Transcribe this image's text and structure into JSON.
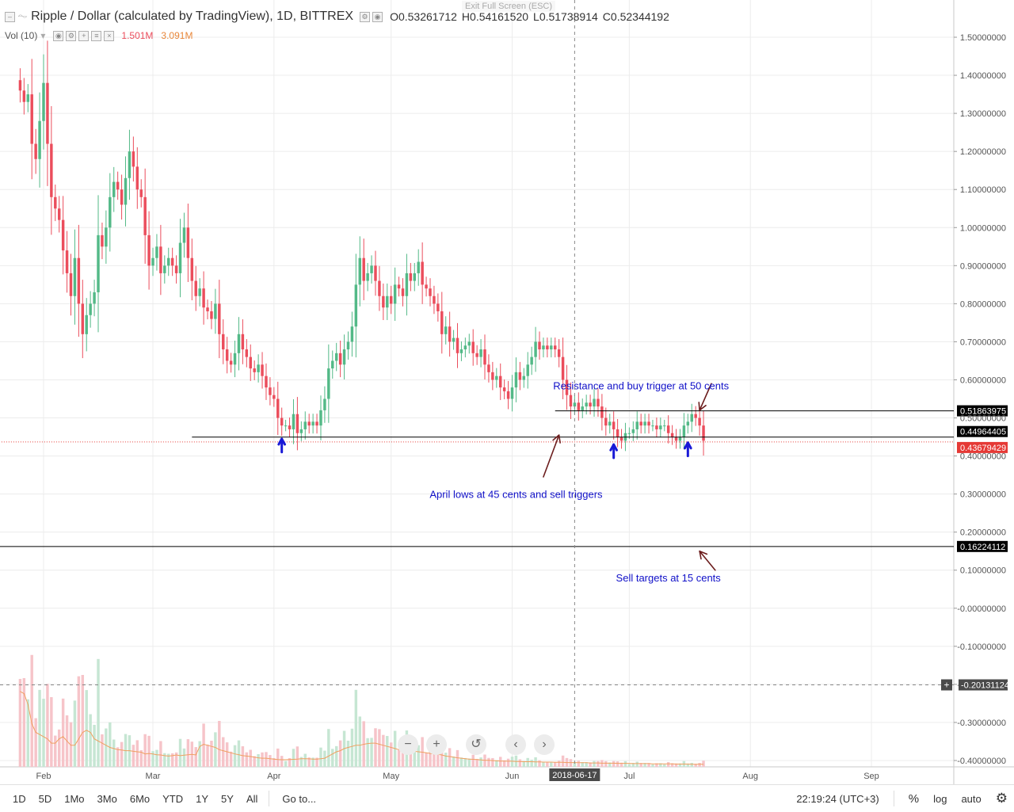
{
  "header": {
    "symbol_title": "Ripple / Dollar (calculated by TradingView), 1D, BITTREX",
    "ohlc": [
      {
        "k": "O",
        "v": "0.53261712"
      },
      {
        "k": "H",
        "v": "0.54161520"
      },
      {
        "k": "L",
        "v": "0.51738914"
      },
      {
        "k": "C",
        "v": "0.52344192"
      }
    ],
    "volume_label": "Vol (10)",
    "volume_value": "1.501M",
    "volume_ma": "3.091M",
    "exit_hint": "Exit Full Screen (ESC)"
  },
  "chart_data": {
    "type": "candlestick",
    "price_axis": {
      "ticks": [
        "1.50000000",
        "1.40000000",
        "1.30000000",
        "1.20000000",
        "1.10000000",
        "1.00000000",
        "0.90000000",
        "0.80000000",
        "0.70000000",
        "0.60000000",
        "0.50000000",
        "0.40000000",
        "0.30000000",
        "0.20000000",
        "0.10000000",
        "-0.00000000",
        "-0.10000000",
        "-0.20000000",
        "-0.30000000",
        "-0.40000000"
      ],
      "range": [
        -0.42,
        1.58
      ]
    },
    "time_axis": {
      "ticks": [
        {
          "label": "Feb",
          "date": "2018-02-01"
        },
        {
          "label": "Mar",
          "date": "2018-03-01"
        },
        {
          "label": "Apr",
          "date": "2018-04-01"
        },
        {
          "label": "May",
          "date": "2018-05-01"
        },
        {
          "label": "Jun",
          "date": "2018-06-01"
        },
        {
          "label": "Jul",
          "date": "2018-07-01"
        },
        {
          "label": "Aug",
          "date": "2018-08-01"
        },
        {
          "label": "Sep",
          "date": "2018-09-01"
        }
      ],
      "range": [
        "2018-01-20",
        "2018-09-25"
      ],
      "crosshair_date": "2018-06-17"
    },
    "last_date": "2018-07-20",
    "closes": [
      1.36,
      1.33,
      1.35,
      1.22,
      1.18,
      1.28,
      1.38,
      1.22,
      1.08,
      1.05,
      1.02,
      0.94,
      0.88,
      0.82,
      0.92,
      0.8,
      0.72,
      0.77,
      0.8,
      0.83,
      0.98,
      0.95,
      1.0,
      1.08,
      1.12,
      1.1,
      1.06,
      1.13,
      1.2,
      1.16,
      1.1,
      1.08,
      0.98,
      0.9,
      0.92,
      0.95,
      0.88,
      0.9,
      0.92,
      0.9,
      0.88,
      0.96,
      1.0,
      0.92,
      0.86,
      0.82,
      0.84,
      0.79,
      0.78,
      0.76,
      0.8,
      0.72,
      0.68,
      0.65,
      0.64,
      0.67,
      0.72,
      0.68,
      0.66,
      0.63,
      0.62,
      0.64,
      0.61,
      0.58,
      0.56,
      0.55,
      0.5,
      0.48,
      0.48,
      0.47,
      0.51,
      0.46,
      0.47,
      0.49,
      0.48,
      0.49,
      0.48,
      0.52,
      0.55,
      0.63,
      0.65,
      0.67,
      0.64,
      0.68,
      0.7,
      0.74,
      0.85,
      0.92,
      0.86,
      0.88,
      0.9,
      0.86,
      0.82,
      0.79,
      0.82,
      0.8,
      0.85,
      0.84,
      0.82,
      0.88,
      0.86,
      0.88,
      0.91,
      0.85,
      0.84,
      0.82,
      0.8,
      0.78,
      0.72,
      0.74,
      0.7,
      0.71,
      0.67,
      0.68,
      0.69,
      0.7,
      0.67,
      0.66,
      0.68,
      0.64,
      0.62,
      0.6,
      0.61,
      0.58,
      0.57,
      0.55,
      0.58,
      0.62,
      0.6,
      0.61,
      0.64,
      0.66,
      0.7,
      0.68,
      0.69,
      0.68,
      0.69,
      0.68,
      0.66,
      0.6,
      0.56,
      0.53,
      0.54,
      0.52,
      0.53,
      0.54,
      0.53,
      0.55,
      0.53,
      0.5,
      0.48,
      0.49,
      0.47,
      0.45,
      0.44,
      0.46,
      0.46,
      0.47,
      0.49,
      0.48,
      0.49,
      0.48,
      0.48,
      0.47,
      0.48,
      0.48,
      0.46,
      0.45,
      0.44,
      0.45,
      0.48,
      0.49,
      0.51,
      0.5,
      0.48,
      0.44
    ],
    "volume_ma": [
      3.5,
      3.4,
      2.9,
      2.0,
      1.6,
      1.5,
      1.4,
      1.3,
      1.1,
      1.1,
      1.3,
      1.4,
      1.2,
      1.0,
      1.0,
      1.3,
      1.6,
      1.7,
      1.6,
      1.3,
      1.2,
      1.1,
      1.0,
      0.9,
      0.85,
      0.8,
      0.78,
      0.75,
      0.75,
      0.72,
      0.7,
      0.68,
      0.6,
      0.62,
      0.6,
      0.56,
      0.55,
      0.52,
      0.5,
      0.52,
      0.55,
      0.52,
      0.54,
      0.56,
      0.58,
      0.55,
      0.95,
      1.05,
      1.0,
      0.95,
      0.9,
      0.8,
      0.75,
      0.7,
      0.65,
      0.6,
      0.56,
      0.52,
      0.5,
      0.48,
      0.45,
      0.42,
      0.4,
      0.4,
      0.38,
      0.36,
      0.34,
      0.33,
      0.33,
      0.34,
      0.35,
      0.36,
      0.38,
      0.38,
      0.37,
      0.36,
      0.36,
      0.38,
      0.4,
      0.5,
      0.6,
      0.7,
      0.75,
      0.85,
      0.9,
      0.95,
      1.0,
      1.0,
      1.05,
      1.08,
      1.1,
      1.1,
      1.05,
      1.0,
      0.95,
      0.9,
      0.85,
      0.8,
      0.8,
      0.78,
      0.75,
      0.72,
      0.7,
      0.68,
      0.65,
      0.62,
      0.6,
      0.58,
      0.55,
      0.5,
      0.48,
      0.45,
      0.42,
      0.4,
      0.38,
      0.36,
      0.35,
      0.34,
      0.32,
      0.3,
      0.3,
      0.29,
      0.28,
      0.27,
      0.27,
      0.26,
      0.26,
      0.25,
      0.25,
      0.24,
      0.24,
      0.24,
      0.23,
      0.23,
      0.22,
      0.22,
      0.22,
      0.21,
      0.21,
      0.21,
      0.2,
      0.2,
      0.2,
      0.19,
      0.19,
      0.19,
      0.18,
      0.18,
      0.18,
      0.17,
      0.17,
      0.17,
      0.17,
      0.16,
      0.16,
      0.16,
      0.16,
      0.15,
      0.15,
      0.15,
      0.15,
      0.15,
      0.14,
      0.14,
      0.14,
      0.14,
      0.14,
      0.14,
      0.13,
      0.13,
      0.13,
      0.13,
      0.12,
      0.12,
      0.12,
      0.12,
      0.12,
      0.11,
      0.11
    ],
    "volume_scale_max": 8.0,
    "hlines": [
      {
        "value": 0.51863975,
        "label": "0.51863975",
        "from_date": "2018-06-12",
        "color": "#000000"
      },
      {
        "value": 0.44964405,
        "label": "0.44964405",
        "from_date": "2018-03-11",
        "color": "#000000"
      },
      {
        "value": 0.43679429,
        "label": "0.43679429",
        "from_date": "2018-01-20",
        "color": "#e53935",
        "dotted": true
      },
      {
        "value": 0.16224112,
        "label": "0.16224112",
        "from_date": "2018-01-20",
        "color": "#000000"
      }
    ],
    "crosshair": {
      "value": -0.20131124,
      "label": "-0.20131124"
    },
    "annotations": [
      {
        "text": "Resistance and buy trigger at 50 cents",
        "date": "2018-07-04",
        "value": 0.575
      },
      {
        "text": "April lows at 45 cents and sell triggers",
        "date": "2018-06-02",
        "value": 0.29
      },
      {
        "text": "Sell targets at 15 cents",
        "date": "2018-07-11",
        "value": 0.07
      }
    ],
    "arrows": [
      {
        "color": "#6b1c1c",
        "from_date": "2018-06-09",
        "from_value": 0.345,
        "to_date": "2018-06-13",
        "to_value": 0.455
      },
      {
        "color": "#6b1c1c",
        "from_date": "2018-07-22",
        "from_value": 0.59,
        "to_date": "2018-07-19",
        "to_value": 0.52
      },
      {
        "color": "#6b1c1c",
        "from_date": "2018-07-23",
        "from_value": 0.1,
        "to_date": "2018-07-19",
        "to_value": 0.15
      },
      {
        "color": "#1919d6",
        "from_date": "2018-04-03",
        "from_value": 0.41,
        "to_date": "2018-04-03",
        "to_value": 0.445,
        "short": true
      },
      {
        "color": "#1919d6",
        "from_date": "2018-06-27",
        "from_value": 0.395,
        "to_date": "2018-06-27",
        "to_value": 0.43,
        "short": true
      },
      {
        "color": "#1919d6",
        "from_date": "2018-07-16",
        "from_value": 0.4,
        "to_date": "2018-07-16",
        "to_value": 0.435,
        "short": true
      }
    ],
    "colors": {
      "up": "#53b987",
      "down": "#eb4d5c",
      "up_vol": "#c6e6d3",
      "down_vol": "#f6c4c9",
      "annotation": "#1010c8",
      "grid": "#ececec"
    }
  },
  "bottom_bar": {
    "timeframes": [
      "1D",
      "5D",
      "1Mo",
      "3Mo",
      "6Mo",
      "YTD",
      "1Y",
      "5Y",
      "All"
    ],
    "goto": "Go to...",
    "clock": "22:19:24 (UTC+3)",
    "percent": "%",
    "log": "log",
    "auto": "auto"
  },
  "nav_buttons": [
    "−",
    "+",
    "↺",
    "‹",
    "›"
  ],
  "crosshair_date_label": "2018-06-17"
}
